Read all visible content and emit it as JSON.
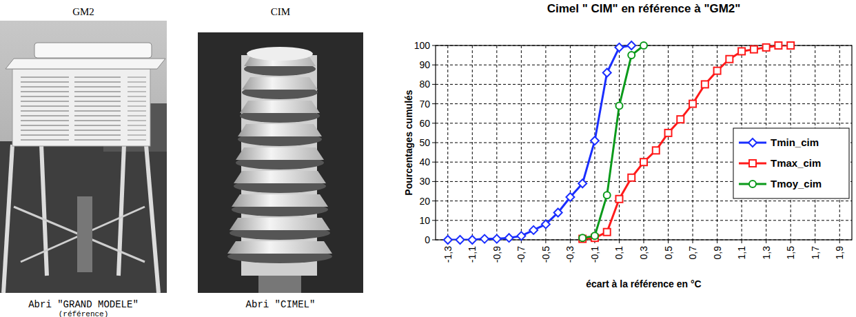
{
  "photos": [
    {
      "title": "GM2",
      "caption": "Abri \"GRAND MODELE\"",
      "note": "(référence)"
    },
    {
      "title": "CIM",
      "caption": "Abri \"CIMEL\""
    }
  ],
  "chart_data": {
    "type": "line",
    "title": "Cimel \" CIM\" en référence à \"GM2\"",
    "x_label": "écart à la référence en °C",
    "y_label": "Pourcentages cumulés",
    "xlim": [
      -1.4,
      2.0
    ],
    "ylim": [
      0,
      100
    ],
    "xticks": [
      {
        "value": -1.3,
        "label": "-1,3"
      },
      {
        "value": -1.1,
        "label": "-1,1"
      },
      {
        "value": -0.9,
        "label": "-0,9"
      },
      {
        "value": -0.7,
        "label": "-0,7"
      },
      {
        "value": -0.5,
        "label": "-0,5"
      },
      {
        "value": -0.3,
        "label": "-0,3"
      },
      {
        "value": -0.1,
        "label": "-0,1"
      },
      {
        "value": 0.1,
        "label": "0,1"
      },
      {
        "value": 0.3,
        "label": "0,3"
      },
      {
        "value": 0.5,
        "label": "0,5"
      },
      {
        "value": 0.7,
        "label": "0,7"
      },
      {
        "value": 0.9,
        "label": "0,9"
      },
      {
        "value": 1.1,
        "label": "1,1"
      },
      {
        "value": 1.3,
        "label": "1,3"
      },
      {
        "value": 1.5,
        "label": "1,5"
      },
      {
        "value": 1.7,
        "label": "1,7"
      },
      {
        "value": 1.9,
        "label": "1,9"
      }
    ],
    "yticks": [
      0,
      10,
      20,
      30,
      40,
      50,
      60,
      70,
      80,
      90,
      100
    ],
    "grid": true,
    "legend": "right",
    "series": [
      {
        "name": "Tmin_cim",
        "color": "#1a2eff",
        "marker": "diamond",
        "x": [
          -1.3,
          -1.2,
          -1.1,
          -1.0,
          -0.9,
          -0.8,
          -0.7,
          -0.6,
          -0.5,
          -0.4,
          -0.3,
          -0.2,
          -0.1,
          0.0,
          0.1,
          0.2
        ],
        "values": [
          0,
          0,
          0,
          0.5,
          0.5,
          1,
          2,
          5,
          8,
          14,
          22,
          29,
          51,
          86,
          99,
          100
        ]
      },
      {
        "name": "Tmax_cim",
        "color": "#ff1a1a",
        "marker": "square",
        "x": [
          -0.2,
          -0.1,
          0.0,
          0.1,
          0.2,
          0.3,
          0.4,
          0.5,
          0.6,
          0.7,
          0.8,
          0.9,
          1.0,
          1.1,
          1.2,
          1.3,
          1.4,
          1.5
        ],
        "values": [
          0.5,
          1,
          4,
          21,
          32,
          40,
          46,
          55,
          62,
          70,
          80,
          87,
          93,
          97,
          98,
          99,
          100,
          100
        ]
      },
      {
        "name": "Tmoy_cim",
        "color": "#0a9a1a",
        "marker": "circle",
        "x": [
          -0.2,
          -0.1,
          0.0,
          0.1,
          0.2,
          0.3
        ],
        "values": [
          1,
          2,
          23,
          69,
          95,
          100
        ]
      }
    ]
  }
}
